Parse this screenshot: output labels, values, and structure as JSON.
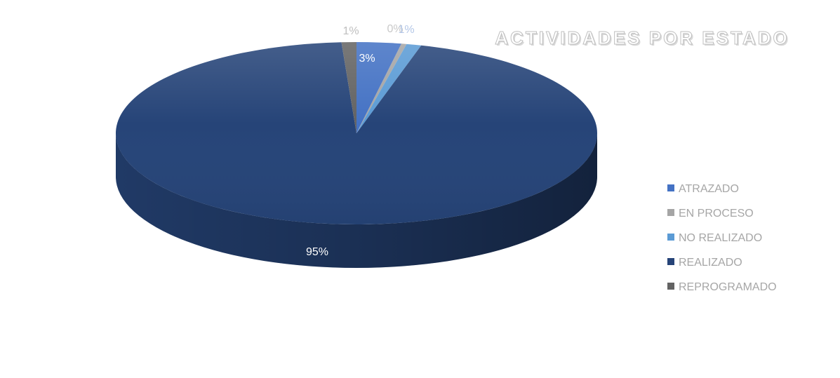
{
  "chart_data": {
    "type": "pie",
    "title": "ACTIVIDADES POR ESTADO",
    "categories": [
      "ATRAZADO",
      "EN PROCESO",
      "NO REALIZADO",
      "REALIZADO",
      "REPROGRAMADO"
    ],
    "values": [
      3,
      0,
      1,
      95,
      1
    ],
    "data_labels": [
      "3%",
      "0%",
      "1%",
      "95%",
      "1%"
    ],
    "colors": [
      "#4472c4",
      "#a5a5a5",
      "#5b9bd5",
      "#264478",
      "#636363"
    ],
    "legend_position": "right"
  }
}
